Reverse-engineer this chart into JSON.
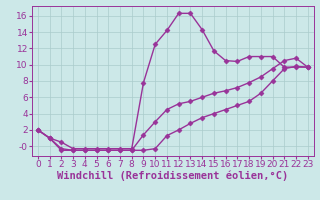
{
  "background_color": "#cce8e8",
  "grid_color": "#aacccc",
  "line_color": "#993399",
  "spine_color": "#993399",
  "xlim": [
    -0.5,
    23.5
  ],
  "ylim": [
    -1.2,
    17.2
  ],
  "xticks": [
    0,
    1,
    2,
    3,
    4,
    5,
    6,
    7,
    8,
    9,
    10,
    11,
    12,
    13,
    14,
    15,
    16,
    17,
    18,
    19,
    20,
    21,
    22,
    23
  ],
  "yticks": [
    0,
    2,
    4,
    6,
    8,
    10,
    12,
    14,
    16
  ],
  "ytick_labels": [
    "-0",
    "2",
    "4",
    "6",
    "8",
    "10",
    "12",
    "14",
    "16"
  ],
  "line1_x": [
    0,
    1,
    2,
    3,
    4,
    5,
    6,
    7,
    8,
    9,
    10,
    11,
    12,
    13,
    14,
    15,
    16,
    17,
    18,
    19,
    20,
    21,
    22,
    23
  ],
  "line1_y": [
    2.0,
    1.0,
    0.5,
    -0.3,
    -0.3,
    -0.3,
    -0.3,
    -0.3,
    -0.3,
    7.8,
    12.5,
    14.2,
    16.3,
    16.3,
    14.3,
    11.7,
    10.5,
    10.4,
    11.0,
    11.0,
    11.0,
    9.7,
    9.7,
    9.7
  ],
  "line2_x": [
    0,
    1,
    2,
    3,
    4,
    5,
    6,
    7,
    8,
    9,
    10,
    11,
    12,
    13,
    14,
    15,
    16,
    17,
    18,
    19,
    20,
    21,
    22,
    23
  ],
  "line2_y": [
    2.0,
    1.0,
    -0.5,
    -0.5,
    -0.5,
    -0.5,
    -0.5,
    -0.5,
    -0.5,
    -0.5,
    -0.3,
    1.3,
    2.0,
    2.8,
    3.5,
    4.0,
    4.5,
    5.0,
    5.5,
    6.5,
    8.0,
    9.5,
    9.8,
    9.7
  ],
  "line3_x": [
    0,
    1,
    2,
    3,
    4,
    5,
    6,
    7,
    8,
    9,
    10,
    11,
    12,
    13,
    14,
    15,
    16,
    17,
    18,
    19,
    20,
    21,
    22,
    23
  ],
  "line3_y": [
    2.0,
    1.0,
    -0.3,
    -0.5,
    -0.5,
    -0.5,
    -0.5,
    -0.5,
    -0.5,
    1.4,
    3.0,
    4.5,
    5.2,
    5.5,
    6.0,
    6.5,
    6.8,
    7.2,
    7.8,
    8.5,
    9.5,
    10.5,
    10.8,
    9.7
  ],
  "marker": "D",
  "markersize": 2.5,
  "linewidth": 1.0,
  "xlabel": "Windchill (Refroidissement éolien,°C)",
  "xlabel_fontsize": 7.5,
  "tick_fontsize": 6.5
}
